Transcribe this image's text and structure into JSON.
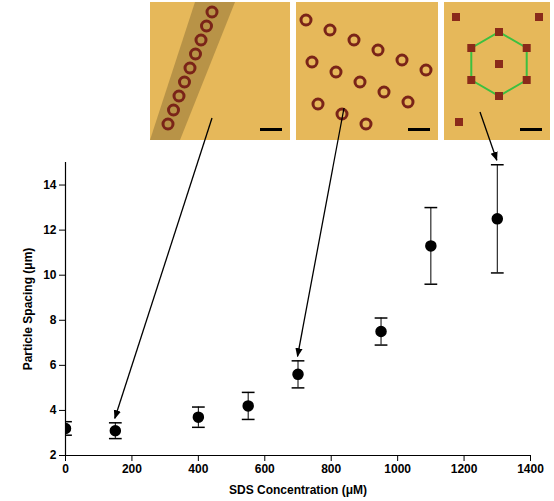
{
  "chart_data": {
    "type": "scatter",
    "x_label": "SDS Concentration (μM)",
    "y_label": "Particle Spacing (μm)",
    "x": [
      0,
      150,
      400,
      550,
      700,
      950,
      1100,
      1300
    ],
    "values": [
      3.2,
      3.1,
      3.7,
      4.2,
      5.6,
      7.5,
      11.3,
      12.5
    ],
    "error": [
      0.3,
      0.35,
      0.45,
      0.6,
      0.6,
      0.6,
      1.7,
      2.4
    ],
    "color": "#000000",
    "marker": "circle",
    "xlim": [
      0,
      1400
    ],
    "xticks": [
      0,
      200,
      400,
      600,
      800,
      1000,
      1200,
      1400
    ],
    "ylim": [
      2,
      15
    ],
    "yticks": [
      2,
      4,
      6,
      8,
      10,
      12,
      14
    ],
    "grid": false
  }
}
